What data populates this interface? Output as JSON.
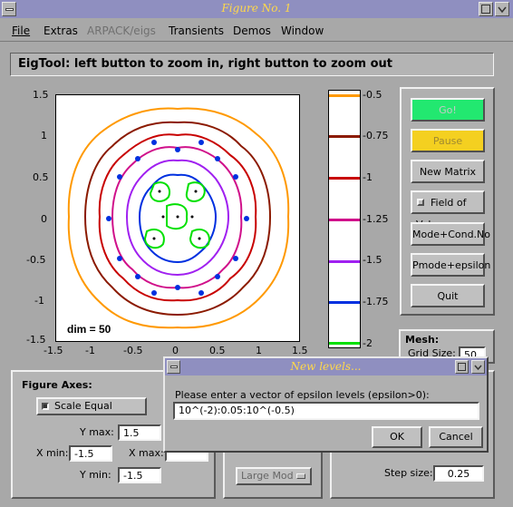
{
  "window": {
    "title": "Figure No. 1"
  },
  "menu": {
    "file": "File",
    "extras": "Extras",
    "arpack": "ARPACK/eigs",
    "transients": "Transients",
    "demos": "Demos",
    "window": "Window"
  },
  "header": {
    "text": "EigTool: left button to zoom in, right button to zoom out"
  },
  "plot": {
    "annotation": "dim = 50",
    "yticks": [
      "1.5",
      "1",
      "0.5",
      "0",
      "-0.5",
      "-1",
      "-1.5"
    ],
    "xticks": [
      "-1.5",
      "-1",
      "-0.5",
      "0",
      "0.5",
      "1",
      "1.5"
    ]
  },
  "colorbar": {
    "labels": [
      "-0.5",
      "-0.75",
      "-1",
      "-1.25",
      "-1.5",
      "-1.75",
      "-2"
    ],
    "colors": [
      "#ff9900",
      "#8b1a00",
      "#c80000",
      "#d0108a",
      "#a020f0",
      "#0030e0",
      "#00e000"
    ]
  },
  "buttons": {
    "go": "Go!",
    "pause": "Pause",
    "new_matrix": "New Matrix",
    "field_of_vals": "Field of Vals.",
    "mode_cond": "Mode+Cond.No",
    "pmode_eps": "Pmode+epsilon",
    "quit": "Quit"
  },
  "mesh": {
    "title": "Mesh:",
    "grid_size_label": "Grid Size:",
    "grid_size": "50"
  },
  "figure_axes": {
    "title": "Figure Axes:",
    "scale_equal": "Scale Equal",
    "ymax_label": "Y max:",
    "ymax": "1.5",
    "xmin_label": "X min:",
    "xmin": "-1.5",
    "xmax_label": "X max:",
    "ymin_label": "Y min:",
    "ymin": "-1.5"
  },
  "arpack_panel": {
    "which_value": "Large Mod"
  },
  "step": {
    "label": "Step size:",
    "value": "0.25"
  },
  "dialog": {
    "title": "New levels...",
    "prompt": "Please enter a vector of epsilon levels (epsilon>0):",
    "value": "10^(-2):0.05:10^(-0.5)",
    "ok": "OK",
    "cancel": "Cancel"
  }
}
